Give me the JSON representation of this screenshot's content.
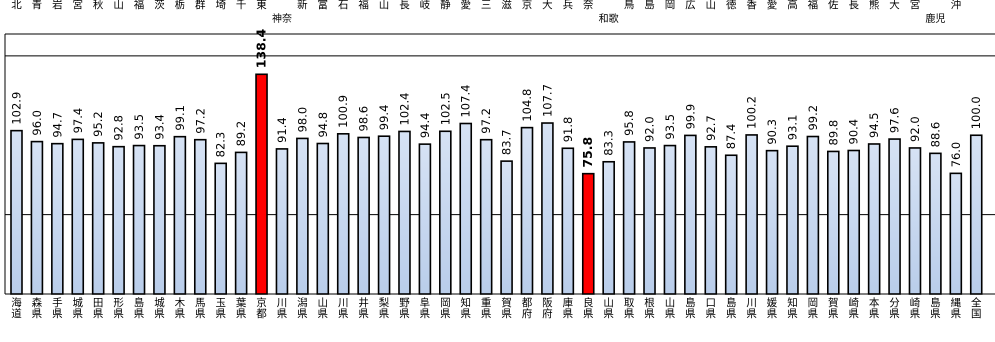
{
  "chart_data": {
    "type": "bar",
    "title": "",
    "xlabel": "",
    "ylabel": "",
    "grid": true,
    "legend": "none",
    "categories": [
      "北海道",
      "青森県",
      "岩手県",
      "宮城県",
      "秋田県",
      "山形県",
      "福島県",
      "茨城県",
      "栃木県",
      "群馬県",
      "埼玉県",
      "千葉県",
      "東京都",
      "神奈川県",
      "新潟県",
      "富山県",
      "石川県",
      "福井県",
      "山梨県",
      "長野県",
      "岐阜県",
      "静岡県",
      "愛知県",
      "三重県",
      "滋賀県",
      "京都府",
      "大阪府",
      "兵庫県",
      "奈良県",
      "和歌山県",
      "鳥取県",
      "島根県",
      "岡山県",
      "広島県",
      "山口県",
      "徳島県",
      "香川県",
      "愛媛県",
      "高知県",
      "福岡県",
      "佐賀県",
      "長崎県",
      "熊本県",
      "大分県",
      "宮崎県",
      "鹿児島県",
      "沖縄県",
      "全国"
    ],
    "bottom_labels": [
      "海道",
      "森県",
      "手県",
      "城県",
      "田県",
      "形県",
      "島県",
      "城県",
      "木県",
      "馬県",
      "玉県",
      "葉県",
      "京都",
      "川県",
      "潟県",
      "山県",
      "川県",
      "井県",
      "梨県",
      "野県",
      "阜県",
      "岡県",
      "知県",
      "重県",
      "賀県",
      "都府",
      "阪府",
      "庫県",
      "良県",
      "山県",
      "取県",
      "根県",
      "山県",
      "島県",
      "口県",
      "島県",
      "川県",
      "媛県",
      "知県",
      "岡県",
      "賀県",
      "崎県",
      "本県",
      "分県",
      "崎県",
      "島県",
      "縄県",
      "全国"
    ],
    "top_labels": [
      "北",
      "青",
      "岩",
      "宮",
      "秋",
      "山",
      "福",
      "茨",
      "栃",
      "群",
      "埼",
      "千",
      "東",
      "神奈",
      "新",
      "富",
      "石",
      "福",
      "山",
      "長",
      "岐",
      "静",
      "愛",
      "三",
      "滋",
      "京",
      "大",
      "兵",
      "奈",
      "和歌",
      "鳥",
      "島",
      "岡",
      "広",
      "山",
      "徳",
      "香",
      "愛",
      "高",
      "福",
      "佐",
      "長",
      "熊",
      "大",
      "宮",
      "鹿児",
      "沖"
    ],
    "values": [
      102.9,
      96.0,
      94.7,
      97.4,
      95.2,
      92.8,
      93.5,
      93.4,
      99.1,
      97.2,
      82.3,
      89.2,
      138.4,
      91.4,
      98.0,
      94.8,
      100.9,
      98.6,
      99.4,
      102.4,
      94.4,
      102.5,
      107.4,
      97.2,
      83.7,
      104.8,
      107.7,
      91.8,
      75.8,
      83.3,
      95.8,
      92.0,
      93.5,
      99.9,
      92.7,
      87.4,
      100.2,
      90.3,
      93.1,
      99.2,
      89.8,
      90.4,
      94.5,
      97.6,
      92.0,
      88.6,
      76.0,
      100.0
    ],
    "value_labels": [
      "102.9",
      "96.0",
      "94.7",
      "97.4",
      "95.2",
      "92.8",
      "93.5",
      "93.4",
      "99.1",
      "97.2",
      "82.3",
      "89.2",
      "138.4",
      "91.4",
      "98.0",
      "94.8",
      "100.9",
      "98.6",
      "99.4",
      "102.4",
      "94.4",
      "102.5",
      "107.4",
      "97.2",
      "83.7",
      "104.8",
      "107.7",
      "91.8",
      "75.8",
      "83.3",
      "95.8",
      "92.0",
      "93.5",
      "99.9",
      "92.7",
      "87.4",
      "100.2",
      "90.3",
      "93.1",
      "99.2",
      "89.8",
      "90.4",
      "94.5",
      "97.6",
      "92.0",
      "88.6",
      "76.0",
      "100.0"
    ],
    "highlighted": [
      "東京都",
      "奈良県"
    ],
    "ylim": [
      0,
      160
    ],
    "gridlines": [
      50,
      150
    ],
    "colors": {
      "bar_fill_top": "#d6e2f4",
      "bar_fill_bottom": "#b9cdea",
      "bar_stroke": "#000000",
      "highlight_fill": "#ff0000",
      "grid": "#000000",
      "text": "#000000"
    }
  }
}
